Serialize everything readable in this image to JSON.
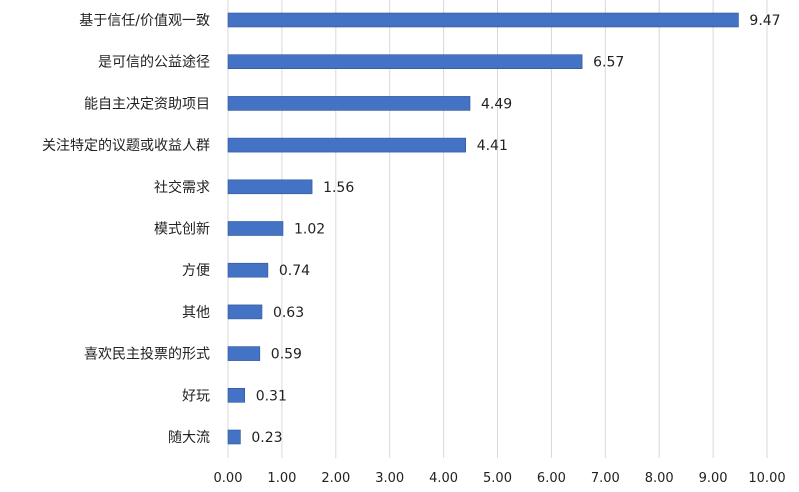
{
  "chart_data": {
    "type": "bar",
    "orientation": "horizontal",
    "title": "",
    "xlabel": "",
    "ylabel": "",
    "categories": [
      "基于信任/价值观一致",
      "是可信的公益途径",
      "能自主决定资助项目",
      "关注特定的议题或收益人群",
      "社交需求",
      "模式创新",
      "方便",
      "其他",
      "喜欢民主投票的形式",
      "好玩",
      "随大流"
    ],
    "values": [
      9.47,
      6.57,
      4.49,
      4.41,
      1.56,
      1.02,
      0.74,
      0.63,
      0.59,
      0.31,
      0.23
    ],
    "data_labels": [
      "9.47",
      "6.57",
      "4.49",
      "4.41",
      "1.56",
      "1.02",
      "0.74",
      "0.63",
      "0.59",
      "0.31",
      "0.23"
    ],
    "xlim": [
      0,
      10
    ],
    "x_ticks": [
      "0.00",
      "1.00",
      "2.00",
      "3.00",
      "4.00",
      "5.00",
      "6.00",
      "7.00",
      "8.00",
      "9.00",
      "10.00"
    ],
    "grid": "vertical",
    "legend": "none",
    "bar_color": "#4472c4"
  }
}
